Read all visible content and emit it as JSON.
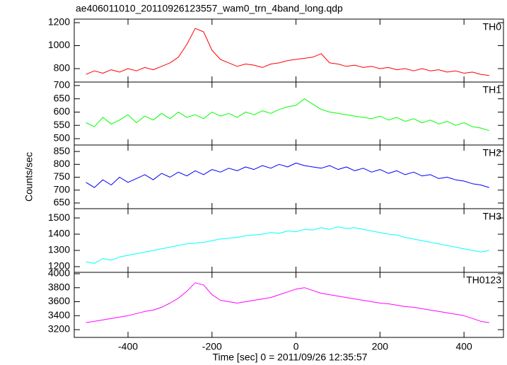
{
  "chart_data": [
    {
      "type": "line",
      "title": "ae406011010_20110926123557_wam0_trn_4band_long.qdp",
      "x": [
        -500,
        -480,
        -460,
        -440,
        -420,
        -400,
        -380,
        -360,
        -340,
        -320,
        -300,
        -280,
        -260,
        -240,
        -220,
        -200,
        -180,
        -160,
        -140,
        -120,
        -100,
        -80,
        -60,
        -40,
        -20,
        0,
        20,
        40,
        60,
        80,
        100,
        120,
        140,
        160,
        180,
        200,
        220,
        240,
        260,
        280,
        300,
        320,
        340,
        360,
        380,
        400,
        420,
        440,
        460
      ],
      "series": [
        {
          "name": "TH0",
          "color": "#ff0000",
          "values": [
            750,
            780,
            760,
            790,
            770,
            800,
            780,
            810,
            790,
            820,
            850,
            900,
            1010,
            1150,
            1120,
            960,
            880,
            850,
            820,
            840,
            830,
            810,
            840,
            850,
            870,
            880,
            890,
            900,
            930,
            850,
            840,
            820,
            830,
            810,
            820,
            800,
            810,
            790,
            800,
            780,
            800,
            780,
            790,
            770,
            780,
            760,
            770,
            750,
            740
          ]
        }
      ],
      "ylim": [
        683,
        1231
      ],
      "yticks": [
        800,
        1000,
        1200
      ]
    },
    {
      "type": "line",
      "x": [
        -500,
        -480,
        -460,
        -440,
        -420,
        -400,
        -380,
        -360,
        -340,
        -320,
        -300,
        -280,
        -260,
        -240,
        -220,
        -200,
        -180,
        -160,
        -140,
        -120,
        -100,
        -80,
        -60,
        -40,
        -20,
        0,
        20,
        40,
        60,
        80,
        100,
        120,
        140,
        160,
        180,
        200,
        220,
        240,
        260,
        280,
        300,
        320,
        340,
        360,
        380,
        400,
        420,
        440,
        460
      ],
      "series": [
        {
          "name": "TH1",
          "color": "#00ff00",
          "values": [
            560,
            545,
            580,
            555,
            570,
            590,
            560,
            585,
            570,
            595,
            575,
            600,
            580,
            590,
            575,
            600,
            585,
            595,
            580,
            600,
            590,
            605,
            595,
            610,
            620,
            625,
            650,
            630,
            610,
            600,
            595,
            590,
            585,
            580,
            575,
            585,
            570,
            580,
            565,
            575,
            560,
            570,
            555,
            565,
            550,
            560,
            545,
            540,
            530
          ]
        }
      ],
      "ylim": [
        476,
        713
      ],
      "yticks": [
        500,
        550,
        600,
        650,
        700
      ]
    },
    {
      "type": "line",
      "ylabel": "Counts/sec",
      "x": [
        -500,
        -480,
        -460,
        -440,
        -420,
        -400,
        -380,
        -360,
        -340,
        -320,
        -300,
        -280,
        -260,
        -240,
        -220,
        -200,
        -180,
        -160,
        -140,
        -120,
        -100,
        -80,
        -60,
        -40,
        -20,
        0,
        20,
        40,
        60,
        80,
        100,
        120,
        140,
        160,
        180,
        200,
        220,
        240,
        260,
        280,
        300,
        320,
        340,
        360,
        380,
        400,
        420,
        440,
        460
      ],
      "series": [
        {
          "name": "TH2",
          "color": "#0000ff",
          "values": [
            730,
            710,
            740,
            720,
            750,
            730,
            745,
            760,
            740,
            765,
            750,
            770,
            755,
            775,
            760,
            780,
            770,
            785,
            775,
            790,
            780,
            795,
            785,
            800,
            790,
            805,
            795,
            790,
            785,
            795,
            780,
            790,
            775,
            785,
            770,
            780,
            765,
            775,
            760,
            770,
            755,
            760,
            745,
            750,
            740,
            735,
            725,
            720,
            710
          ]
        }
      ],
      "ylim": [
        628,
        875
      ],
      "yticks": [
        650,
        700,
        750,
        800,
        850
      ]
    },
    {
      "type": "line",
      "x": [
        -500,
        -480,
        -460,
        -440,
        -420,
        -400,
        -380,
        -360,
        -340,
        -320,
        -300,
        -280,
        -260,
        -240,
        -220,
        -200,
        -180,
        -160,
        -140,
        -120,
        -100,
        -80,
        -60,
        -40,
        -20,
        0,
        20,
        40,
        60,
        80,
        100,
        120,
        140,
        160,
        180,
        200,
        220,
        240,
        260,
        280,
        300,
        320,
        340,
        360,
        380,
        400,
        420,
        440,
        460
      ],
      "series": [
        {
          "name": "TH3",
          "color": "#00ffff",
          "values": [
            1230,
            1220,
            1250,
            1240,
            1260,
            1270,
            1280,
            1290,
            1300,
            1310,
            1320,
            1330,
            1340,
            1345,
            1350,
            1360,
            1370,
            1375,
            1380,
            1390,
            1395,
            1400,
            1410,
            1405,
            1420,
            1415,
            1430,
            1425,
            1440,
            1430,
            1445,
            1435,
            1440,
            1430,
            1420,
            1410,
            1400,
            1395,
            1380,
            1370,
            1360,
            1350,
            1340,
            1330,
            1320,
            1310,
            1300,
            1290,
            1300
          ]
        }
      ],
      "ylim": [
        1165,
        1557
      ],
      "yticks": [
        1200,
        1300,
        1400,
        1500
      ]
    },
    {
      "type": "line",
      "xlabel": "Time [sec] 0 = 2011/09/26 12:35:57",
      "x": [
        -500,
        -480,
        -460,
        -440,
        -420,
        -400,
        -380,
        -360,
        -340,
        -320,
        -300,
        -280,
        -260,
        -240,
        -220,
        -200,
        -180,
        -160,
        -140,
        -120,
        -100,
        -80,
        -60,
        -40,
        -20,
        0,
        20,
        40,
        60,
        80,
        100,
        120,
        140,
        160,
        180,
        200,
        220,
        240,
        260,
        280,
        300,
        320,
        340,
        360,
        380,
        400,
        420,
        440,
        460
      ],
      "series": [
        {
          "name": "TH0123",
          "color": "#ff00ff",
          "values": [
            3300,
            3320,
            3340,
            3360,
            3380,
            3400,
            3430,
            3460,
            3480,
            3520,
            3580,
            3650,
            3750,
            3870,
            3840,
            3700,
            3620,
            3600,
            3580,
            3600,
            3620,
            3640,
            3660,
            3700,
            3740,
            3780,
            3800,
            3760,
            3720,
            3700,
            3680,
            3660,
            3640,
            3620,
            3600,
            3580,
            3570,
            3550,
            3530,
            3520,
            3500,
            3480,
            3460,
            3440,
            3420,
            3400,
            3360,
            3320,
            3300
          ]
        }
      ],
      "ylim": [
        3089,
        4020
      ],
      "yticks": [
        3200,
        3400,
        3600,
        3800,
        4000
      ],
      "xlim": [
        -528,
        494
      ],
      "xticks": [
        -400,
        -200,
        0,
        200,
        400
      ]
    }
  ]
}
